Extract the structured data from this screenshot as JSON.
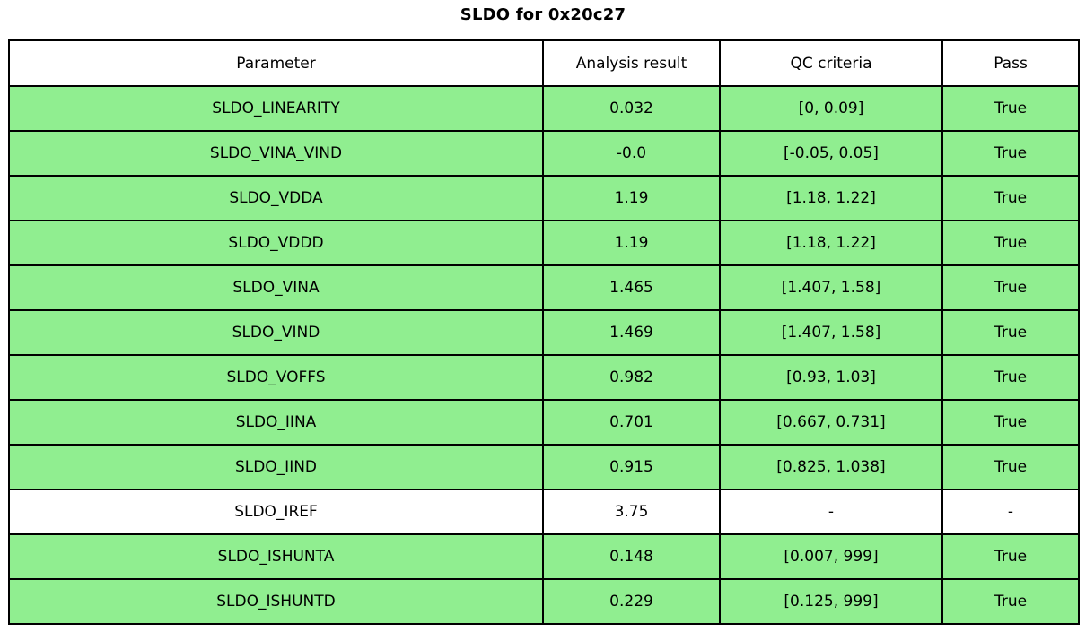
{
  "title": "SLDO for 0x20c27",
  "colors": {
    "pass_green": "#90EE90",
    "row_white": "#ffffff",
    "border_black": "#000000"
  },
  "chart_data": {
    "type": "table",
    "title": "SLDO for 0x20c27",
    "columns": [
      "Parameter",
      "Analysis result",
      "QC criteria",
      "Pass"
    ],
    "rows": [
      [
        "SLDO_LINEARITY",
        "0.032",
        "[0, 0.09]",
        "True"
      ],
      [
        "SLDO_VINA_VIND",
        "-0.0",
        "[-0.05, 0.05]",
        "True"
      ],
      [
        "SLDO_VDDA",
        "1.19",
        "[1.18, 1.22]",
        "True"
      ],
      [
        "SLDO_VDDD",
        "1.19",
        "[1.18, 1.22]",
        "True"
      ],
      [
        "SLDO_VINA",
        "1.465",
        "[1.407, 1.58]",
        "True"
      ],
      [
        "SLDO_VIND",
        "1.469",
        "[1.407, 1.58]",
        "True"
      ],
      [
        "SLDO_VOFFS",
        "0.982",
        "[0.93, 1.03]",
        "True"
      ],
      [
        "SLDO_IINA",
        "0.701",
        "[0.667, 0.731]",
        "True"
      ],
      [
        "SLDO_IIND",
        "0.915",
        "[0.825, 1.038]",
        "True"
      ],
      [
        "SLDO_IREF",
        "3.75",
        "-",
        "-"
      ],
      [
        "SLDO_ISHUNTA",
        "0.148",
        "[0.007, 999]",
        "True"
      ],
      [
        "SLDO_ISHUNTD",
        "0.229",
        "[0.125, 999]",
        "True"
      ]
    ],
    "pass_true_label": "True",
    "legend_note": "rows with Pass=True have green background, others white",
    "grid": true,
    "layout": "title top-center, table fills figure"
  }
}
